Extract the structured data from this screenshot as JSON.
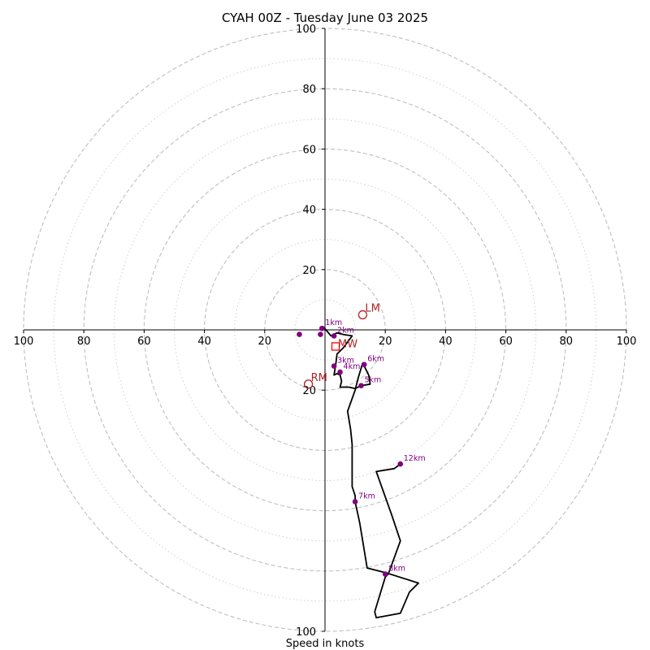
{
  "chart_data": {
    "type": "line",
    "title": "CYAH 00Z - Tuesday June 03 2025",
    "xlabel": "Speed in knots",
    "ylabel": "",
    "xlim": [
      -100,
      100
    ],
    "ylim": [
      -100,
      100
    ],
    "grid": true,
    "rings_major": [
      20,
      40,
      60,
      80,
      100
    ],
    "rings_minor": [
      10,
      30,
      50,
      70,
      90
    ],
    "x_ticks": [
      {
        "value": -100,
        "label": "100"
      },
      {
        "value": -80,
        "label": "80"
      },
      {
        "value": -60,
        "label": "60"
      },
      {
        "value": -40,
        "label": "40"
      },
      {
        "value": -20,
        "label": "20"
      },
      {
        "value": 20,
        "label": "20"
      },
      {
        "value": 40,
        "label": "40"
      },
      {
        "value": 60,
        "label": "60"
      },
      {
        "value": 80,
        "label": "80"
      },
      {
        "value": 100,
        "label": "100"
      }
    ],
    "y_ticks": [
      {
        "value": 100,
        "label": "100"
      },
      {
        "value": 80,
        "label": "80"
      },
      {
        "value": 60,
        "label": "60"
      },
      {
        "value": 40,
        "label": "40"
      },
      {
        "value": 20,
        "label": "20"
      },
      {
        "value": -20,
        "label": "20"
      },
      {
        "value": -100,
        "label": "100"
      }
    ],
    "hodograph": [
      [
        -1,
        0.5
      ],
      [
        -0.5,
        1
      ],
      [
        2,
        -2
      ],
      [
        4,
        -1
      ],
      [
        6,
        -1.5
      ],
      [
        9,
        -2
      ],
      [
        6,
        -6
      ],
      [
        4,
        -8
      ],
      [
        3.5,
        -12
      ],
      [
        3,
        -15
      ],
      [
        4,
        -14.5
      ],
      [
        5,
        -15
      ],
      [
        5.5,
        -17
      ],
      [
        5,
        -19
      ],
      [
        8,
        -19
      ],
      [
        10,
        -19.5
      ],
      [
        12,
        -18.5
      ],
      [
        15,
        -18
      ],
      [
        14.5,
        -15
      ],
      [
        13.5,
        -13
      ],
      [
        12.5,
        -11
      ],
      [
        11,
        -16
      ],
      [
        10,
        -20
      ],
      [
        7.5,
        -27
      ],
      [
        8.5,
        -33
      ],
      [
        9,
        -38
      ],
      [
        9,
        -45
      ],
      [
        9,
        -52
      ],
      [
        10,
        -55
      ],
      [
        10,
        -57
      ],
      [
        11.5,
        -64
      ],
      [
        14,
        -79
      ],
      [
        20,
        -80.5
      ],
      [
        31,
        -84
      ],
      [
        28,
        -87
      ],
      [
        25,
        -94
      ],
      [
        17,
        -95.5
      ],
      [
        16.5,
        -93.5
      ],
      [
        20,
        -82
      ],
      [
        21,
        -81
      ],
      [
        25,
        -70
      ],
      [
        22,
        -61
      ],
      [
        17,
        -47
      ],
      [
        23,
        -46
      ],
      [
        25,
        -44.5
      ]
    ],
    "height_markers": [
      {
        "label": "1km",
        "x": -1,
        "y": 0.5
      },
      {
        "label": "2km",
        "x": 3,
        "y": -2
      },
      {
        "label": "3km",
        "x": 3,
        "y": -12
      },
      {
        "label": "4km",
        "x": 5,
        "y": -14
      },
      {
        "label": "5km",
        "x": 12,
        "y": -18.5
      },
      {
        "label": "6km",
        "x": 13,
        "y": -11.5
      },
      {
        "label": "7km",
        "x": 10,
        "y": -57
      },
      {
        "label": "8km",
        "x": 20,
        "y": -81
      },
      {
        "label": "12km",
        "x": 25,
        "y": -44.5
      }
    ],
    "extra_points": [
      [
        -1.5,
        -1.5
      ],
      [
        -8.5,
        -1.5
      ]
    ],
    "storm_motion": [
      {
        "label": "LM",
        "x": 12.5,
        "y": 5
      },
      {
        "label": "RM",
        "x": -5.5,
        "y": -18
      },
      {
        "label": "MW",
        "x": 3.5,
        "y": -5.5
      }
    ],
    "colors": {
      "hodograph": "#000000",
      "markers": "#800080",
      "storm_motion": "#b22222",
      "mean_wind_symbol": "#ff0000",
      "grid": "#bfbfbf"
    }
  }
}
